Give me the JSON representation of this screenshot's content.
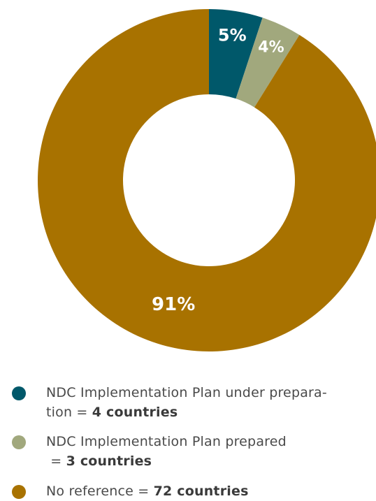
{
  "chart_data": {
    "type": "pie",
    "donut": true,
    "categories": [
      "NDC Implementation Plan under preparation",
      "NDC Implementation Plan prepared",
      "No reference"
    ],
    "values": [
      4,
      3,
      72
    ],
    "percent_labels": [
      "5%",
      "4%",
      "91%"
    ],
    "colors": [
      "#00586a",
      "#a1a87d",
      "#a87200"
    ],
    "legend_placement": "bottom"
  },
  "legend": {
    "items": [
      {
        "line1": "NDC Implementation Plan under prepara-",
        "line2_prefix": "tion = ",
        "line2_bold": "4 countries",
        "color": "#00586a"
      },
      {
        "line1": "NDC Implementation Plan prepared",
        "line2_prefix": " = ",
        "line2_bold": "3 countries",
        "color": "#a1a87d"
      },
      {
        "line1_prefix": "No reference = ",
        "line1_bold": "72 countries",
        "color": "#a87200"
      }
    ]
  }
}
